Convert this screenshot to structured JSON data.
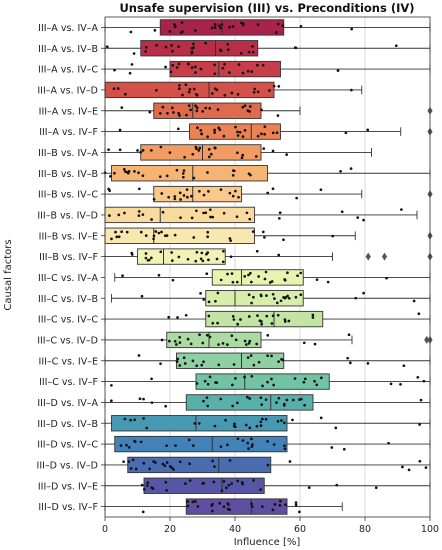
{
  "chart_data": {
    "type": "box",
    "orientation": "horizontal",
    "title": "Unsafe supervision (III) vs. Preconditions (IV)",
    "xlabel": "Influence [%]",
    "ylabel": "Causal factors",
    "xlim": [
      0,
      100
    ],
    "xticks": [
      0,
      20,
      40,
      60,
      80,
      100
    ],
    "grid": {
      "x": true,
      "y": false
    },
    "palette": "Spectral",
    "categories": [
      "III–A vs. IV–A",
      "III–A vs. IV–B",
      "III–A vs. IV–C",
      "III–A vs. IV–D",
      "III–A vs. IV–E",
      "III–A vs. IV–F",
      "III–B vs. IV–A",
      "III–B vs. IV–B",
      "III–B vs. IV–C",
      "III–B vs. IV–D",
      "III–B vs. IV–E",
      "III–B vs. IV–F",
      "III–C vs. IV–A",
      "III–C vs. IV–B",
      "III–C vs. IV–C",
      "III–C vs. IV–D",
      "III–C vs. IV–E",
      "III–C vs. IV–F",
      "III–D vs. IV–A",
      "III–D vs. IV–B",
      "III–D vs. IV–C",
      "III–D vs. IV–D",
      "III–D vs. IV–E",
      "III–D vs. IV–F"
    ],
    "colors": [
      "#a8234a",
      "#b82e48",
      "#c73d49",
      "#d4514a",
      "#e06a4e",
      "#ea8255",
      "#f29b62",
      "#f6b474",
      "#f8c98a",
      "#f9da9e",
      "#f8e7ae",
      "#f3f2b6",
      "#e8f3b0",
      "#d7eda9",
      "#c3e5a3",
      "#abdba3",
      "#8fcfa4",
      "#72c2a6",
      "#59b0ab",
      "#4799b3",
      "#4282b8",
      "#4a6cb0",
      "#5656a5",
      "#5e4fa2"
    ],
    "boxes": [
      {
        "whislo": 0,
        "q1": 17,
        "med": 36,
        "q3": 55,
        "whishi": 100,
        "fliers": []
      },
      {
        "whislo": 0,
        "q1": 11,
        "med": 34,
        "q3": 47,
        "whishi": 100,
        "fliers": []
      },
      {
        "whislo": 0,
        "q1": 20,
        "med": 35,
        "q3": 54,
        "whishi": 100,
        "fliers": []
      },
      {
        "whislo": 0,
        "q1": 0,
        "med": 32,
        "q3": 52,
        "whishi": 79,
        "fliers": []
      },
      {
        "whislo": 0,
        "q1": 15,
        "med": 27,
        "q3": 48,
        "whishi": 60,
        "fliers": [
          100
        ]
      },
      {
        "whislo": 0,
        "q1": 26,
        "med": 45,
        "q3": 54,
        "whishi": 91,
        "fliers": [
          100
        ]
      },
      {
        "whislo": 0,
        "q1": 11,
        "med": 30,
        "q3": 48,
        "whishi": 82,
        "fliers": []
      },
      {
        "whislo": 0,
        "q1": 2,
        "med": 27,
        "q3": 50,
        "whishi": 100,
        "fliers": []
      },
      {
        "whislo": 0,
        "q1": 15,
        "med": 27,
        "q3": 42,
        "whishi": 79,
        "fliers": [
          100
        ]
      },
      {
        "whislo": 0,
        "q1": 0,
        "med": 17,
        "q3": 46,
        "whishi": 96,
        "fliers": []
      },
      {
        "whislo": 0,
        "q1": 0,
        "med": 15,
        "q3": 46,
        "whishi": 77,
        "fliers": [
          100
        ]
      },
      {
        "whislo": 0,
        "q1": 10,
        "med": 18,
        "q3": 37,
        "whishi": 70,
        "fliers": [
          81,
          86,
          100
        ]
      },
      {
        "whislo": 3,
        "q1": 33,
        "med": 42,
        "q3": 61,
        "whishi": 100,
        "fliers": []
      },
      {
        "whislo": 2,
        "q1": 31,
        "med": 40,
        "q3": 61,
        "whishi": 100,
        "fliers": []
      },
      {
        "whislo": 0,
        "q1": 31,
        "med": 52,
        "q3": 67,
        "whishi": 100,
        "fliers": []
      },
      {
        "whislo": 0,
        "q1": 19,
        "med": 32,
        "q3": 48,
        "whishi": 76,
        "fliers": [
          99,
          100
        ]
      },
      {
        "whislo": 0,
        "q1": 22,
        "med": 42,
        "q3": 55,
        "whishi": 100,
        "fliers": []
      },
      {
        "whislo": 0,
        "q1": 28,
        "med": 43,
        "q3": 69,
        "whishi": 100,
        "fliers": []
      },
      {
        "whislo": 0,
        "q1": 25,
        "med": 51,
        "q3": 64,
        "whishi": 100,
        "fliers": []
      },
      {
        "whislo": 0,
        "q1": 2,
        "med": 28,
        "q3": 56,
        "whishi": 100,
        "fliers": []
      },
      {
        "whislo": 0,
        "q1": 3,
        "med": 33,
        "q3": 56,
        "whishi": 100,
        "fliers": []
      },
      {
        "whislo": 0,
        "q1": 7,
        "med": 35,
        "q3": 51,
        "whishi": 100,
        "fliers": []
      },
      {
        "whislo": 0,
        "q1": 12,
        "med": 36,
        "q3": 49,
        "whishi": 100,
        "fliers": []
      },
      {
        "whislo": 0,
        "q1": 25,
        "med": 45,
        "q3": 56,
        "whishi": 73,
        "fliers": []
      }
    ]
  }
}
